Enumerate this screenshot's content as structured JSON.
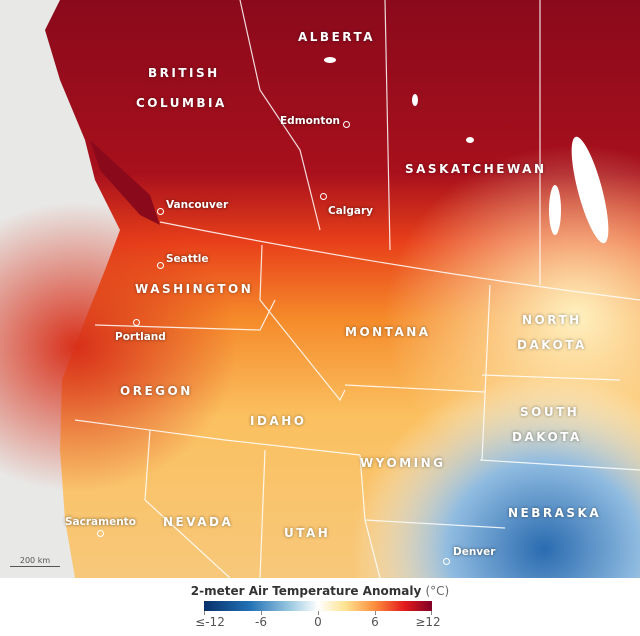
{
  "map": {
    "regions": [
      "ALBERTA",
      "BRITISH",
      "COLUMBIA",
      "SASKATCHEWAN",
      "WASHINGTON",
      "MONTANA",
      "NORTH",
      "DAKOTA",
      "SOUTH",
      "DAKOTA",
      "OREGON",
      "IDAHO",
      "WYOMING",
      "NEVADA",
      "UTAH",
      "NEBRASKA"
    ],
    "cities": [
      "Edmonton",
      "Calgary",
      "Vancouver",
      "Seattle",
      "Portland",
      "Sacramento",
      "Denver"
    ],
    "scale_label": "200 km"
  },
  "legend": {
    "title": "2-meter Air Temperature Anomaly",
    "unit": "(°C)",
    "ticks": [
      "≤-12",
      "-6",
      "0",
      "6",
      "≥12"
    ],
    "colors": [
      "#08306b",
      "#2171b5",
      "#ffffff",
      "#fd8d3c",
      "#800026"
    ]
  }
}
